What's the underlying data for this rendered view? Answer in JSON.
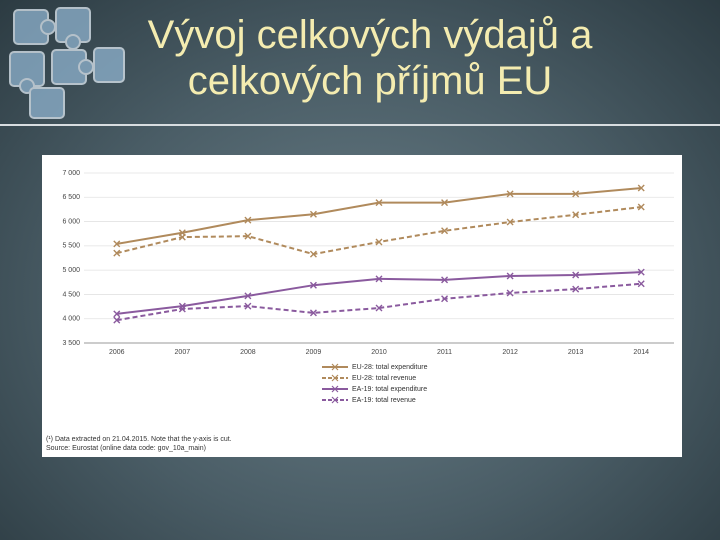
{
  "slide": {
    "title_lines": [
      "Vývoj celkových výdajů a",
      "celkových příjmů EU"
    ]
  },
  "chart_data": {
    "type": "line",
    "categories": [
      "2006",
      "2007",
      "2008",
      "2009",
      "2010",
      "2011",
      "2012",
      "2013",
      "2014"
    ],
    "ylim": [
      3500,
      7000
    ],
    "yticks": [
      {
        "value": 3500,
        "label": "3 500"
      },
      {
        "value": 4000,
        "label": "4 000"
      },
      {
        "value": 4500,
        "label": "4 500"
      },
      {
        "value": 5000,
        "label": "5 000"
      },
      {
        "value": 5500,
        "label": "5 500"
      },
      {
        "value": 6000,
        "label": "6 000"
      },
      {
        "value": 6500,
        "label": "6 500"
      },
      {
        "value": 7000,
        "label": "7 000"
      }
    ],
    "series": [
      {
        "name": "EU-28: total expenditure",
        "color": "#b08a5c",
        "dash": false,
        "values": [
          5540,
          5770,
          6030,
          6150,
          6390,
          6390,
          6570,
          6570,
          6690
        ]
      },
      {
        "name": "EU-28: total revenue",
        "color": "#b08a5c",
        "dash": true,
        "values": [
          5350,
          5680,
          5700,
          5330,
          5580,
          5810,
          5990,
          6140,
          6300
        ]
      },
      {
        "name": "EA-19: total expenditure",
        "color": "#8a5a9e",
        "dash": false,
        "values": [
          4100,
          4260,
          4470,
          4690,
          4820,
          4800,
          4880,
          4900,
          4960
        ]
      },
      {
        "name": "EA-19: total revenue",
        "color": "#8a5a9e",
        "dash": true,
        "values": [
          3970,
          4200,
          4260,
          4120,
          4220,
          4410,
          4530,
          4610,
          4720
        ]
      }
    ],
    "notes": [
      "(¹) Data extracted on 21.04.2015. Note that the y-axis is cut.",
      "Source: Eurostat (online data code: gov_10a_main)"
    ]
  }
}
